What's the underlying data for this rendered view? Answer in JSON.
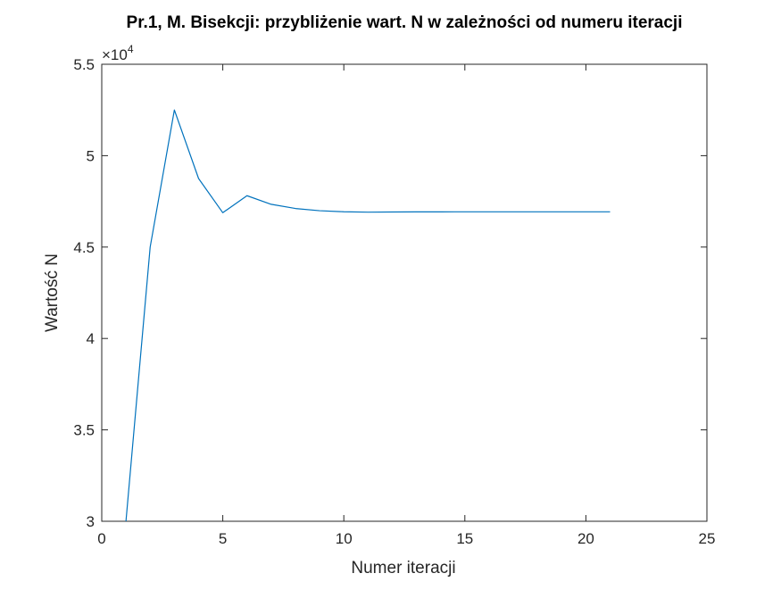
{
  "chart_data": {
    "type": "line",
    "title": "Pr.1, M. Bisekcji: przybliżenie wart. N w zależności od numeru iteracji",
    "xlabel": "Numer iteracji",
    "ylabel": "Wartość N",
    "y_exponent_label": "×10",
    "y_exponent_power": "4",
    "xlim": [
      0,
      25
    ],
    "ylim": [
      30000,
      55000
    ],
    "x_ticks": [
      0,
      5,
      10,
      15,
      20,
      25
    ],
    "x_tick_labels": [
      "0",
      "5",
      "10",
      "15",
      "20",
      "25"
    ],
    "y_ticks": [
      30000,
      35000,
      40000,
      45000,
      50000,
      55000
    ],
    "y_tick_labels": [
      "3",
      "3.5",
      "4",
      "4.5",
      "5",
      "5.5"
    ],
    "grid": false,
    "line_color": "#0072BD",
    "series": [
      {
        "x": [
          1,
          2,
          3,
          4,
          5,
          6,
          7,
          8,
          9,
          10,
          11,
          12,
          13,
          14,
          15,
          16,
          17,
          18,
          19,
          20,
          21
        ],
        "y": [
          30000,
          45000,
          52500,
          48750,
          46880,
          47810,
          47340,
          47110,
          46990,
          46930,
          46910,
          46920,
          46925,
          46927,
          46928,
          46928,
          46928,
          46928,
          46928,
          46928,
          46928
        ]
      }
    ]
  }
}
